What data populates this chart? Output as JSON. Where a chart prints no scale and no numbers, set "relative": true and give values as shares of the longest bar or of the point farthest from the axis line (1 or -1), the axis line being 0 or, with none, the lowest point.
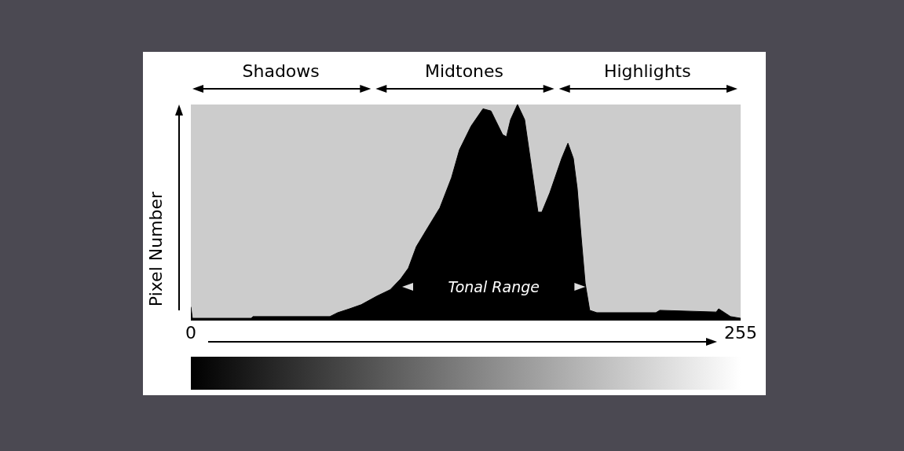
{
  "chart_data": {
    "type": "area",
    "relative": true,
    "ylabel": "Pixel Number",
    "xlim": [
      0,
      255
    ],
    "xticks": [
      0,
      255
    ],
    "color": "#000000",
    "x": [
      0,
      0.7,
      28,
      28.8,
      64.5,
      68.1,
      73.6,
      79,
      86.3,
      92.5,
      97.3,
      100.9,
      104.6,
      110,
      115.5,
      120.9,
      124.6,
      130,
      135.5,
      139.2,
      144.6,
      146.4,
      148.3,
      151.5,
      154.8,
      157.4,
      161,
      162.8,
      166.5,
      172,
      174.9,
      177.4,
      179.2,
      181,
      182.9,
      185,
      188.3,
      215.7,
      217.5,
      243.7,
      244.8,
      250.3,
      255
    ],
    "values": [
      0.06,
      0.007,
      0.007,
      0.015,
      0.015,
      0.033,
      0.051,
      0.07,
      0.11,
      0.14,
      0.19,
      0.24,
      0.34,
      0.43,
      0.52,
      0.66,
      0.79,
      0.9,
      0.98,
      0.97,
      0.86,
      0.85,
      0.93,
      1,
      0.93,
      0.75,
      0.5,
      0.5,
      0.59,
      0.75,
      0.82,
      0.75,
      0.61,
      0.39,
      0.17,
      0.044,
      0.033,
      0.033,
      0.044,
      0.036,
      0.051,
      0.015,
      0.007
    ],
    "annotations": [
      "Shadows",
      "Midtones",
      "Highlights",
      "Tonal Range"
    ],
    "marker": "none"
  }
}
